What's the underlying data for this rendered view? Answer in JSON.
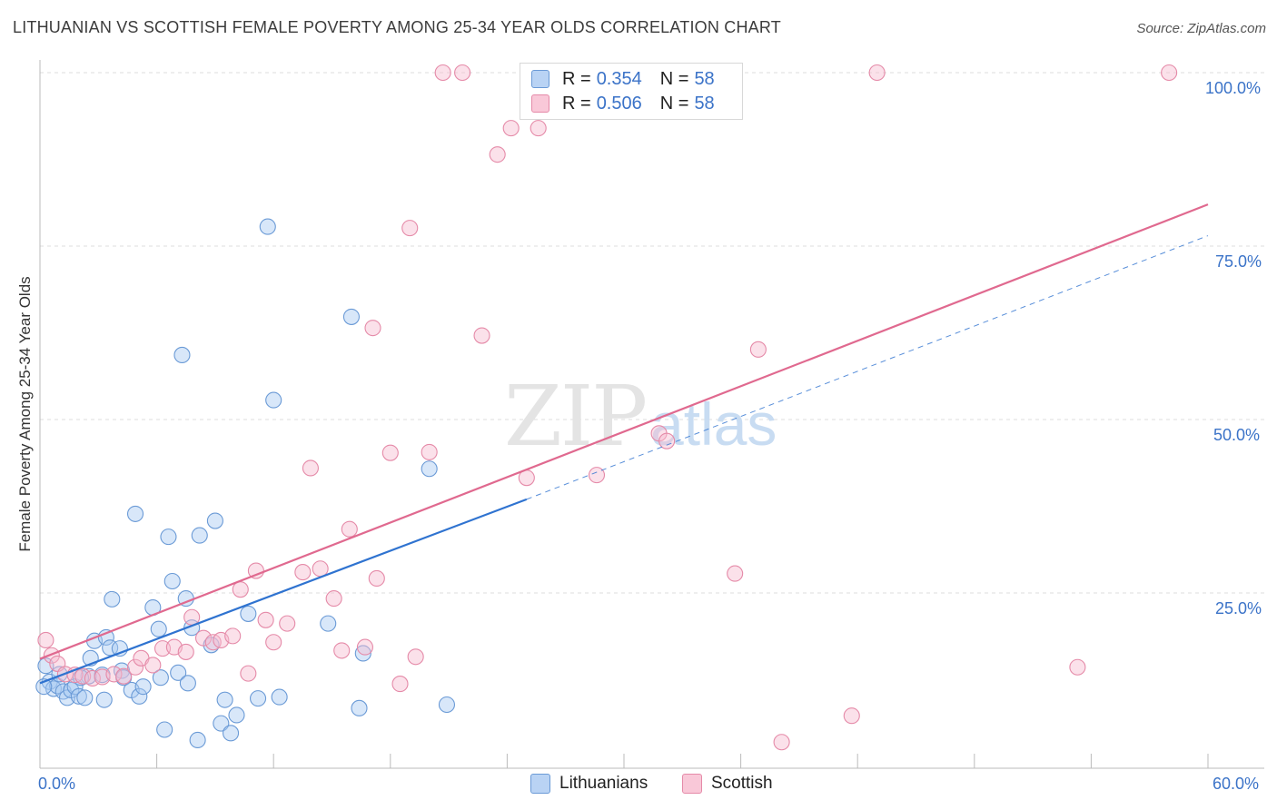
{
  "title": "LITHUANIAN VS SCOTTISH FEMALE POVERTY AMONG 25-34 YEAR OLDS CORRELATION CHART",
  "source": "Source: ZipAtlas.com",
  "watermark": {
    "zip": "ZIP",
    "atlas": "atlas"
  },
  "legend_top": [
    {
      "r_label": "R =",
      "r_value": "0.354",
      "n_label": "N =",
      "n_value": "58"
    },
    {
      "r_label": "R =",
      "r_value": "0.506",
      "n_label": "N =",
      "n_value": "58"
    }
  ],
  "legend_bottom": [
    "Lithuanians",
    "Scottish"
  ],
  "colors": {
    "blue_fill": "#a9c9f2",
    "blue_stroke": "#6a9ad6",
    "blue_line": "#2f73d0",
    "pink_fill": "#f7bdd0",
    "pink_stroke": "#e58aa8",
    "pink_line": "#e0698f",
    "axis_text": "#3b73c8",
    "grid": "#dddddd"
  },
  "chart_data": {
    "type": "scatter",
    "title": "LITHUANIAN VS SCOTTISH FEMALE POVERTY AMONG 25-34 YEAR OLDS CORRELATION CHART",
    "xlabel": "",
    "ylabel": "Female Poverty Among 25-34 Year Olds",
    "xlim": [
      0,
      60
    ],
    "ylim": [
      0,
      100
    ],
    "x_tick_labels": [
      "0.0%",
      "60.0%"
    ],
    "y_tick_labels": [
      "25.0%",
      "50.0%",
      "75.0%",
      "100.0%"
    ],
    "y_ticks": [
      25,
      50,
      75,
      100
    ],
    "grid": true,
    "legend_position": "top-center",
    "series": [
      {
        "name": "Lithuanians",
        "points": [
          [
            0.3,
            14.5
          ],
          [
            0.5,
            12.2
          ],
          [
            0.7,
            11.2
          ],
          [
            0.9,
            11.6
          ],
          [
            1.2,
            10.8
          ],
          [
            1.4,
            9.9
          ],
          [
            1.6,
            11.0
          ],
          [
            1.8,
            11.5
          ],
          [
            2.0,
            10.1
          ],
          [
            2.3,
            9.9
          ],
          [
            2.5,
            13.0
          ],
          [
            2.6,
            15.6
          ],
          [
            2.8,
            18.1
          ],
          [
            3.2,
            13.2
          ],
          [
            3.3,
            9.6
          ],
          [
            3.4,
            18.6
          ],
          [
            3.6,
            17.1
          ],
          [
            3.7,
            24.1
          ],
          [
            4.1,
            17.0
          ],
          [
            4.2,
            13.8
          ],
          [
            4.3,
            12.8
          ],
          [
            4.7,
            11.0
          ],
          [
            4.9,
            36.4
          ],
          [
            5.1,
            10.1
          ],
          [
            5.3,
            11.5
          ],
          [
            5.8,
            22.9
          ],
          [
            6.1,
            19.8
          ],
          [
            6.2,
            12.8
          ],
          [
            6.4,
            5.3
          ],
          [
            6.6,
            33.1
          ],
          [
            6.8,
            26.7
          ],
          [
            7.1,
            13.5
          ],
          [
            7.5,
            24.2
          ],
          [
            7.6,
            12.0
          ],
          [
            7.8,
            20.0
          ],
          [
            8.1,
            3.8
          ],
          [
            8.2,
            33.3
          ],
          [
            8.8,
            17.5
          ],
          [
            9.0,
            35.4
          ],
          [
            9.3,
            6.2
          ],
          [
            9.5,
            9.6
          ],
          [
            9.8,
            4.8
          ],
          [
            10.1,
            7.4
          ],
          [
            10.7,
            22.0
          ],
          [
            11.2,
            9.8
          ],
          [
            11.7,
            77.8
          ],
          [
            12.0,
            52.8
          ],
          [
            12.3,
            10.0
          ],
          [
            14.8,
            20.6
          ],
          [
            16.0,
            64.8
          ],
          [
            16.4,
            8.4
          ],
          [
            16.6,
            16.3
          ],
          [
            20.0,
            42.9
          ],
          [
            20.9,
            8.9
          ],
          [
            7.3,
            59.3
          ],
          [
            0.2,
            11.5
          ],
          [
            1.0,
            13.3
          ],
          [
            2.1,
            12.8
          ]
        ]
      },
      {
        "name": "Scottish",
        "points": [
          [
            0.3,
            18.2
          ],
          [
            0.6,
            16.0
          ],
          [
            0.9,
            14.8
          ],
          [
            1.3,
            13.3
          ],
          [
            1.8,
            13.2
          ],
          [
            2.2,
            13.0
          ],
          [
            2.7,
            12.7
          ],
          [
            3.2,
            12.9
          ],
          [
            3.8,
            13.3
          ],
          [
            4.3,
            13.0
          ],
          [
            4.9,
            14.3
          ],
          [
            5.2,
            15.6
          ],
          [
            5.8,
            14.6
          ],
          [
            6.3,
            17.0
          ],
          [
            6.9,
            17.2
          ],
          [
            7.5,
            16.5
          ],
          [
            7.8,
            21.5
          ],
          [
            8.4,
            18.5
          ],
          [
            8.9,
            17.9
          ],
          [
            9.3,
            18.2
          ],
          [
            9.9,
            18.8
          ],
          [
            10.3,
            25.5
          ],
          [
            10.7,
            13.4
          ],
          [
            11.1,
            28.2
          ],
          [
            11.6,
            21.1
          ],
          [
            12.0,
            17.9
          ],
          [
            12.7,
            20.6
          ],
          [
            13.5,
            28.0
          ],
          [
            13.9,
            43.0
          ],
          [
            14.4,
            28.5
          ],
          [
            15.1,
            24.2
          ],
          [
            15.5,
            16.7
          ],
          [
            15.9,
            34.2
          ],
          [
            16.7,
            17.2
          ],
          [
            17.1,
            63.2
          ],
          [
            17.3,
            27.1
          ],
          [
            18.0,
            45.2
          ],
          [
            18.5,
            11.9
          ],
          [
            19.0,
            77.6
          ],
          [
            19.3,
            15.8
          ],
          [
            20.0,
            45.3
          ],
          [
            20.7,
            100.0
          ],
          [
            21.7,
            100.0
          ],
          [
            22.7,
            62.1
          ],
          [
            23.5,
            88.2
          ],
          [
            24.2,
            92.0
          ],
          [
            25.0,
            41.6
          ],
          [
            25.6,
            92.0
          ],
          [
            28.6,
            42.0
          ],
          [
            31.8,
            48.0
          ],
          [
            32.2,
            46.9
          ],
          [
            35.7,
            27.8
          ],
          [
            36.9,
            60.1
          ],
          [
            38.1,
            3.5
          ],
          [
            41.7,
            7.3
          ],
          [
            43.0,
            100.0
          ],
          [
            53.3,
            14.3
          ],
          [
            58.0,
            100.0
          ]
        ]
      }
    ],
    "trend_lines": [
      {
        "series": "Lithuanians",
        "solid": [
          [
            0,
            12.0
          ],
          [
            25.0,
            38.5
          ]
        ],
        "dashed": [
          [
            25.0,
            38.5
          ],
          [
            60.0,
            76.5
          ]
        ]
      },
      {
        "series": "Scottish",
        "solid": [
          [
            0,
            15.5
          ],
          [
            60.0,
            81.0
          ]
        ]
      }
    ]
  }
}
